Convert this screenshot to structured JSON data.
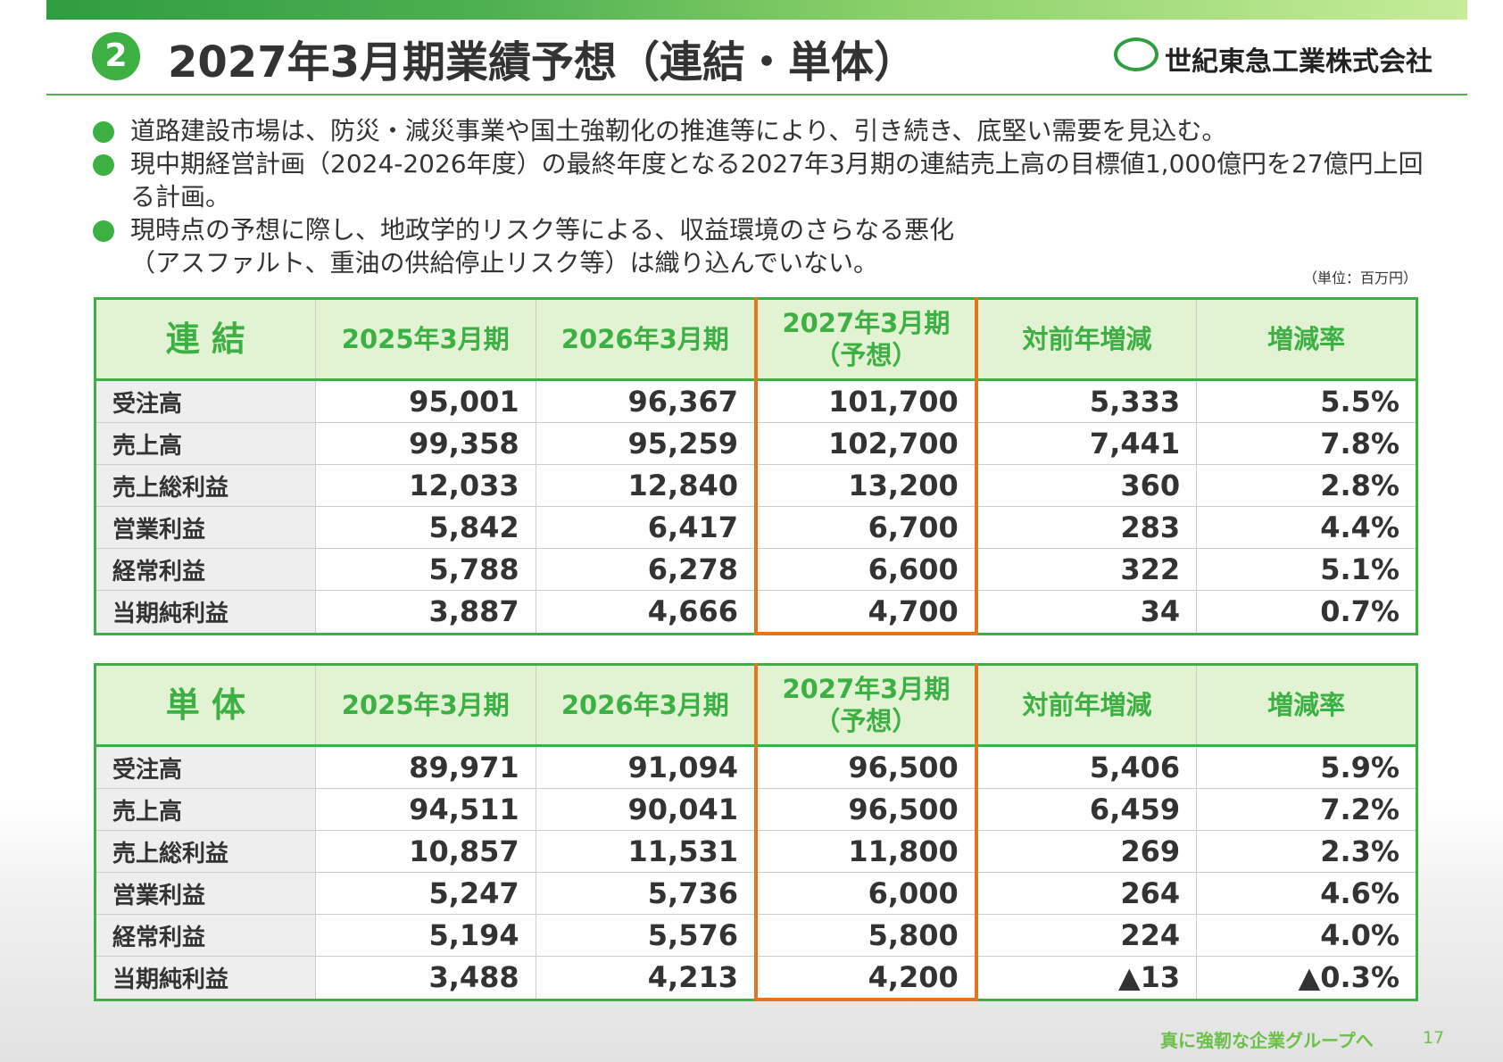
{
  "header": {
    "number": "2",
    "title": "2027年3月期業績予想（連結・単体）",
    "company": "世紀東急工業株式会社"
  },
  "bullets": [
    "道路建設市場は、防災・減災事業や国土強靭化の推進等により、引き続き、底堅い需要を見込む。",
    "現中期経営計画（2024-2026年度）の最終年度となる2027年3月期の連結売上高の目標値1,000億円を27億円上回る計画。",
    "現時点の予想に際し、地政学的リスク等による、収益環境のさらなる悪化\n（アスファルト、重油の供給停止リスク等）は織り込んでいない。"
  ],
  "unit": "（単位：百万円）",
  "tables": [
    {
      "columns": [
        "連 結",
        "2025年3月期",
        "2026年3月期",
        "2027年3月期\n（予想）",
        "対前年増減",
        "増減率"
      ],
      "rows": [
        [
          "受注高",
          "95,001",
          "96,367",
          "101,700",
          "5,333",
          "5.5%"
        ],
        [
          "売上高",
          "99,358",
          "95,259",
          "102,700",
          "7,441",
          "7.8%"
        ],
        [
          "売上総利益",
          "12,033",
          "12,840",
          "13,200",
          "360",
          "2.8%"
        ],
        [
          "営業利益",
          "5,842",
          "6,417",
          "6,700",
          "283",
          "4.4%"
        ],
        [
          "経常利益",
          "5,788",
          "6,278",
          "6,600",
          "322",
          "5.1%"
        ],
        [
          "当期純利益",
          "3,887",
          "4,666",
          "4,700",
          "34",
          "0.7%"
        ]
      ]
    },
    {
      "columns": [
        "単 体",
        "2025年3月期",
        "2026年3月期",
        "2027年3月期\n（予想）",
        "対前年増減",
        "増減率"
      ],
      "rows": [
        [
          "受注高",
          "89,971",
          "91,094",
          "96,500",
          "5,406",
          "5.9%"
        ],
        [
          "売上高",
          "94,511",
          "90,041",
          "96,500",
          "6,459",
          "7.2%"
        ],
        [
          "売上総利益",
          "10,857",
          "11,531",
          "11,800",
          "269",
          "2.3%"
        ],
        [
          "営業利益",
          "5,247",
          "5,736",
          "6,000",
          "264",
          "4.6%"
        ],
        [
          "経常利益",
          "5,194",
          "5,576",
          "5,800",
          "224",
          "4.0%"
        ],
        [
          "当期純利益",
          "3,488",
          "4,213",
          "4,200",
          "▲13",
          "▲0.3%"
        ]
      ]
    }
  ],
  "footer": {
    "tagline": "真に強靭な企業グループへ",
    "page": "17"
  }
}
